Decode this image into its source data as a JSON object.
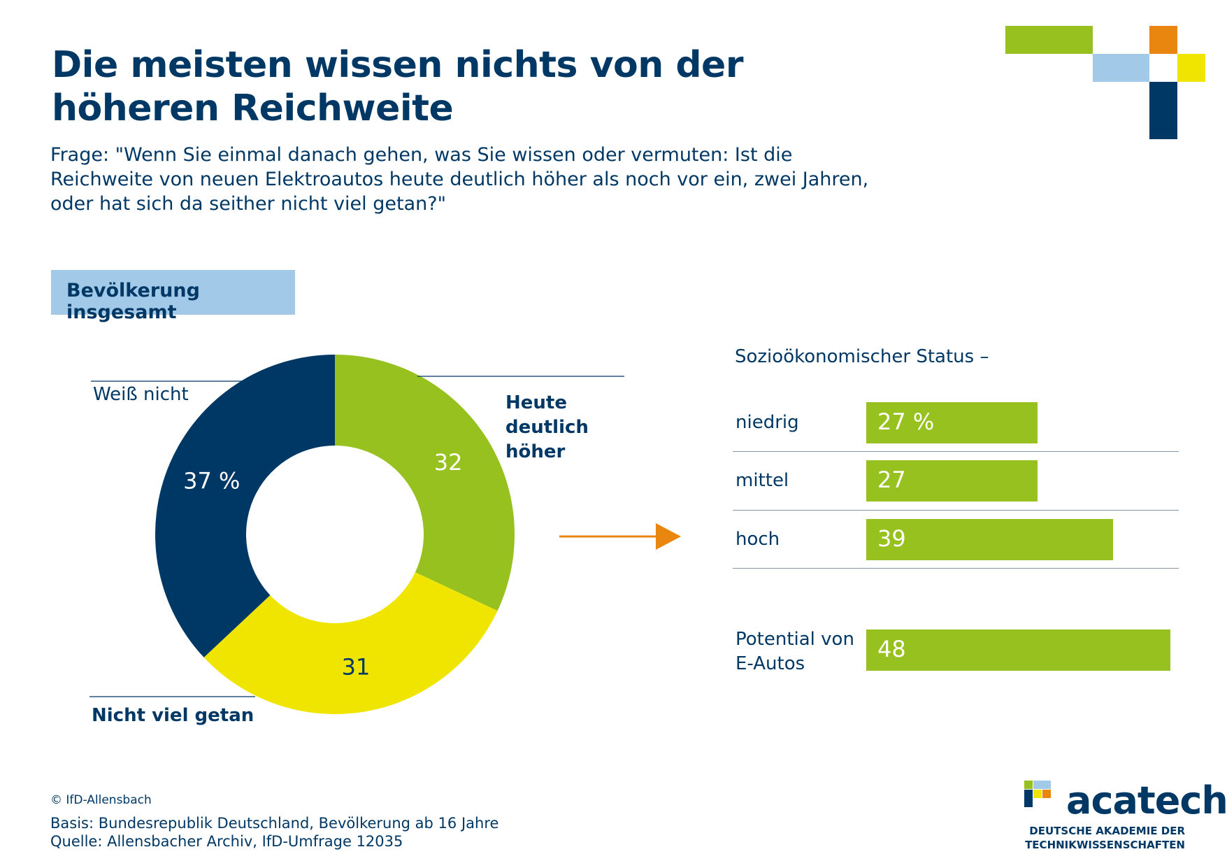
{
  "title": "Die meisten wissen nichts von der höheren Reichweite",
  "question": "Frage: \"Wenn Sie einmal danach gehen, was Sie wissen oder vermuten: Ist die Reichweite von neuen Elektroautos heute deutlich höher als noch vor ein, zwei Jahren, oder hat sich da seither nicht viel getan?\"",
  "group_label": "Bevölkerung insgesamt",
  "donut_labels": {
    "weiss_nicht": "Weiß nicht",
    "heute": "Heute deutlich höher",
    "nicht_viel": "Nicht viel getan"
  },
  "status_heading": "Sozioökonomischer Status –",
  "bar_labels": [
    "niedrig",
    "mittel",
    "hoch",
    "Potential von E-Autos"
  ],
  "colors": {
    "navy": "#003865",
    "green": "#97c11f",
    "yellow": "#f0e500",
    "light_blue": "#a3c9e9",
    "orange": "#e8860f"
  },
  "chart_data": [
    {
      "type": "pie",
      "categories": [
        "Heute deutlich höher",
        "Nicht viel getan",
        "Weiß nicht"
      ],
      "values": [
        32,
        31,
        37
      ],
      "data_labels": [
        "32",
        "31",
        "37 %"
      ],
      "colors": [
        "#97c11f",
        "#f0e500",
        "#003865"
      ],
      "donut": true
    },
    {
      "type": "bar",
      "categories": [
        "niedrig",
        "mittel",
        "hoch",
        "Potential von E-Autos"
      ],
      "values": [
        27,
        27,
        39,
        48
      ],
      "data_labels": [
        "27 %",
        "27",
        "39",
        "48"
      ],
      "orientation": "horizontal",
      "color": "#97c11f"
    }
  ],
  "footer": {
    "copyright": "© IfD-Allensbach",
    "basis": "Basis: Bundesrepublik Deutschland, Bevölkerung ab 16 Jahre",
    "source": "Quelle: Allensbacher Archiv, IfD-Umfrage 12035"
  },
  "logo": {
    "name": "acatech",
    "subtitle_1": "DEUTSCHE AKADEMIE DER",
    "subtitle_2": "TECHNIKWISSENSCHAFTEN"
  }
}
